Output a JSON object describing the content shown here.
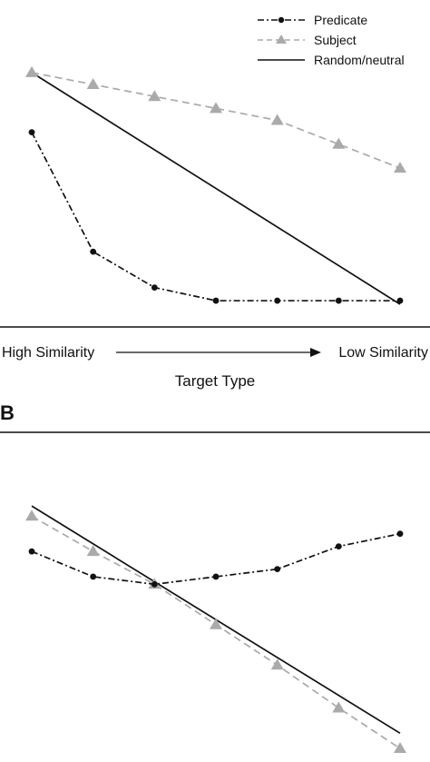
{
  "figure": {
    "panel_b_label": "B",
    "x_axis_low": "High Similarity",
    "x_axis_high": "Low Similarity",
    "x_axis_title": "Target Type"
  },
  "series_styles": [
    {
      "name": "Predicate",
      "color": "#111111",
      "dash": "dash-dot",
      "marker": "circle"
    },
    {
      "name": "Subject",
      "color": "#aaaaaa",
      "dash": "dashed",
      "marker": "triangle"
    },
    {
      "name": "Random/neutral",
      "color": "#111111",
      "dash": "solid",
      "marker": "none"
    }
  ],
  "chart_data": [
    {
      "type": "line",
      "panel": "A",
      "title": "",
      "xlabel": "Target Type",
      "ylabel": "",
      "x": [
        1,
        2,
        3,
        4,
        5,
        6,
        7
      ],
      "xlim": [
        0.5,
        7.5
      ],
      "ylim": [
        0,
        100
      ],
      "legend": {
        "position": "top-right",
        "entries": [
          "Predicate",
          "Subject",
          "Random/neutral"
        ]
      },
      "grid": false,
      "series": [
        {
          "name": "Predicate",
          "values": [
            72,
            22,
            7,
            1.5,
            1.5,
            1.5,
            1.5
          ]
        },
        {
          "name": "Subject",
          "values": [
            97,
            92,
            87,
            82,
            77,
            67,
            57
          ]
        },
        {
          "name": "Random/neutral",
          "endpoints": {
            "x": [
              1,
              7
            ],
            "values": [
              97,
              0
            ]
          }
        }
      ]
    },
    {
      "type": "line",
      "panel": "B",
      "title": "",
      "xlabel": "",
      "ylabel": "",
      "x": [
        1,
        2,
        3,
        4,
        5,
        6,
        7
      ],
      "xlim": [
        0.5,
        7.5
      ],
      "ylim": [
        0,
        100
      ],
      "legend": null,
      "grid": false,
      "series": [
        {
          "name": "Predicate",
          "values": [
            78,
            68,
            65,
            68,
            71,
            80,
            85
          ]
        },
        {
          "name": "Subject",
          "values": [
            92,
            78,
            65,
            49,
            33,
            16,
            0
          ]
        },
        {
          "name": "Random/neutral",
          "endpoints": {
            "x": [
              1,
              7
            ],
            "values": [
              96,
              6
            ]
          }
        }
      ]
    }
  ]
}
